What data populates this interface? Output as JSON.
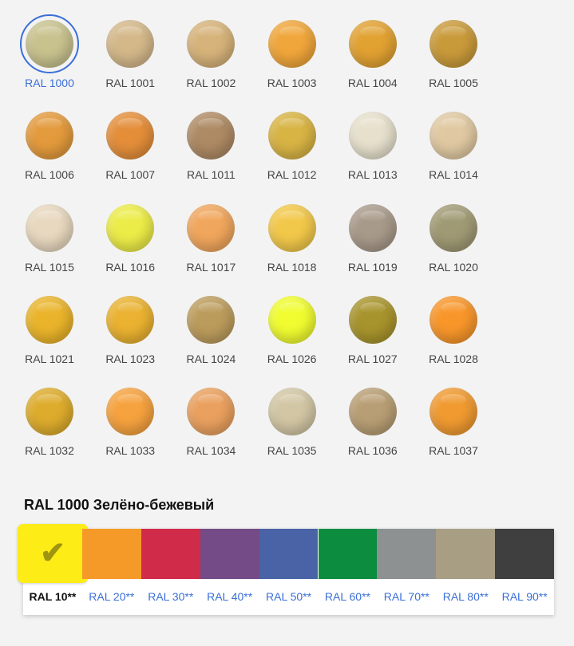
{
  "selected": {
    "title": "RAL 1000 Зелёно-бежевый"
  },
  "swatches": [
    {
      "label": "RAL 1000",
      "color": "#c8c28e"
    },
    {
      "label": "RAL 1001",
      "color": "#d4b88a"
    },
    {
      "label": "RAL 1002",
      "color": "#d6b37a"
    },
    {
      "label": "RAL 1003",
      "color": "#f0a63a"
    },
    {
      "label": "RAL 1004",
      "color": "#e2a232"
    },
    {
      "label": "RAL 1005",
      "color": "#c99a3a"
    },
    {
      "label": "RAL 1006",
      "color": "#e39a3c"
    },
    {
      "label": "RAL 1007",
      "color": "#e48e3a"
    },
    {
      "label": "RAL 1011",
      "color": "#ae8a64"
    },
    {
      "label": "RAL 1012",
      "color": "#d8b444"
    },
    {
      "label": "RAL 1013",
      "color": "#e6e0cc"
    },
    {
      "label": "RAL 1014",
      "color": "#e0c9a2"
    },
    {
      "label": "RAL 1015",
      "color": "#e8d8bf"
    },
    {
      "label": "RAL 1016",
      "color": "#ecec48"
    },
    {
      "label": "RAL 1017",
      "color": "#f0a65c"
    },
    {
      "label": "RAL 1018",
      "color": "#f2c84a"
    },
    {
      "label": "RAL 1019",
      "color": "#a89a8a"
    },
    {
      "label": "RAL 1020",
      "color": "#a09a74"
    },
    {
      "label": "RAL 1021",
      "color": "#eab42a"
    },
    {
      "label": "RAL 1023",
      "color": "#eab230"
    },
    {
      "label": "RAL 1024",
      "color": "#bc9c5c"
    },
    {
      "label": "RAL 1026",
      "color": "#f0fc30"
    },
    {
      "label": "RAL 1027",
      "color": "#a8942c"
    },
    {
      "label": "RAL 1028",
      "color": "#f8962a"
    },
    {
      "label": "RAL 1032",
      "color": "#ddac2c"
    },
    {
      "label": "RAL 1033",
      "color": "#f6a23e"
    },
    {
      "label": "RAL 1034",
      "color": "#eaa05e"
    },
    {
      "label": "RAL 1035",
      "color": "#d2c6a4"
    },
    {
      "label": "RAL 1036",
      "color": "#b89e74"
    },
    {
      "label": "RAL 1037",
      "color": "#f09a30"
    }
  ],
  "groups": [
    {
      "label": "RAL 10**",
      "color": "#fdec16"
    },
    {
      "label": "RAL 20**",
      "color": "#f59a28"
    },
    {
      "label": "RAL 30**",
      "color": "#d02c4a"
    },
    {
      "label": "RAL 40**",
      "color": "#744b87"
    },
    {
      "label": "RAL 50**",
      "color": "#4a63a6"
    },
    {
      "label": "RAL 60**",
      "color": "#0b8c3e"
    },
    {
      "label": "RAL 70**",
      "color": "#8e9191"
    },
    {
      "label": "RAL 80**",
      "color": "#a89e84"
    },
    {
      "label": "RAL 90**",
      "color": "#3f3f3f"
    }
  ],
  "accent": "#3a6fd8"
}
